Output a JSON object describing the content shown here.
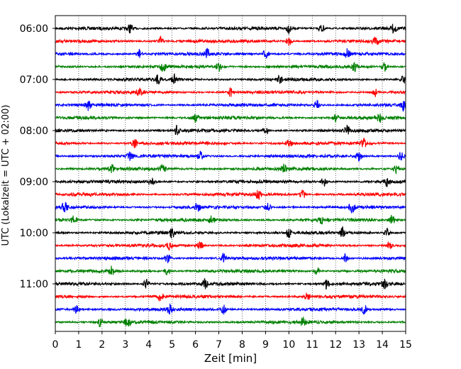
{
  "chart_data": {
    "type": "line",
    "title": "",
    "xlabel": "Zeit  [min]",
    "ylabel": "UTC (Lokalzeit = UTC + 02:00)",
    "xlim": [
      0,
      15
    ],
    "x_ticks": [
      0,
      1,
      2,
      3,
      4,
      5,
      6,
      7,
      8,
      9,
      10,
      11,
      12,
      13,
      14,
      15
    ],
    "x_grid": "vertical dotted",
    "y_ticks": [
      "06:00",
      "07:00",
      "08:00",
      "09:00",
      "10:00",
      "11:00"
    ],
    "trace_interval_min": 15,
    "series": [
      {
        "start": "06:00",
        "color": "#000000",
        "spikes": [
          3.2,
          10.0,
          11.4,
          14.5
        ]
      },
      {
        "start": "06:15",
        "color": "#ff0000",
        "spikes": [
          4.5,
          10.0,
          13.7
        ]
      },
      {
        "start": "06:30",
        "color": "#0000ff",
        "spikes": [
          3.6,
          6.5,
          9.0,
          12.5
        ]
      },
      {
        "start": "06:45",
        "color": "#008000",
        "spikes": [
          4.6,
          7.0,
          12.8,
          14.1
        ]
      },
      {
        "start": "07:00",
        "color": "#000000",
        "spikes": [
          4.4,
          5.1,
          9.6,
          14.9
        ]
      },
      {
        "start": "07:15",
        "color": "#ff0000",
        "spikes": [
          3.6,
          7.5,
          13.7
        ]
      },
      {
        "start": "07:30",
        "color": "#0000ff",
        "spikes": [
          1.4,
          11.2,
          14.9
        ]
      },
      {
        "start": "07:45",
        "color": "#008000",
        "spikes": [
          6.0,
          12.0,
          13.9
        ]
      },
      {
        "start": "08:00",
        "color": "#000000",
        "spikes": [
          5.2,
          9.0,
          12.5
        ]
      },
      {
        "start": "08:15",
        "color": "#ff0000",
        "spikes": [
          3.4,
          10.0,
          13.2
        ]
      },
      {
        "start": "08:30",
        "color": "#0000ff",
        "spikes": [
          3.2,
          6.2,
          13.0,
          14.8
        ]
      },
      {
        "start": "08:45",
        "color": "#008000",
        "spikes": [
          2.4,
          4.6,
          9.8,
          14.6
        ]
      },
      {
        "start": "09:00",
        "color": "#000000",
        "spikes": [
          4.1,
          11.5,
          14.2
        ]
      },
      {
        "start": "09:15",
        "color": "#ff0000",
        "spikes": [
          8.7,
          10.6
        ]
      },
      {
        "start": "09:30",
        "color": "#0000ff",
        "spikes": [
          0.4,
          6.1,
          9.1,
          12.7
        ]
      },
      {
        "start": "09:45",
        "color": "#008000",
        "spikes": [
          0.8,
          6.7,
          11.4,
          14.4
        ]
      },
      {
        "start": "10:00",
        "color": "#000000",
        "spikes": [
          5.0,
          10.0,
          12.3,
          14.2
        ]
      },
      {
        "start": "10:15",
        "color": "#ff0000",
        "spikes": [
          4.9,
          6.2,
          14.3
        ]
      },
      {
        "start": "10:30",
        "color": "#0000ff",
        "spikes": [
          4.8,
          7.2,
          12.4
        ]
      },
      {
        "start": "10:45",
        "color": "#008000",
        "spikes": [
          2.4,
          4.8,
          11.2
        ]
      },
      {
        "start": "11:00",
        "color": "#000000",
        "spikes": [
          3.9,
          6.4,
          11.6,
          14.1
        ]
      },
      {
        "start": "11:15",
        "color": "#ff0000",
        "spikes": [
          4.5,
          10.8
        ]
      },
      {
        "start": "11:30",
        "color": "#0000ff",
        "spikes": [
          0.9,
          4.9,
          7.2,
          13.2
        ]
      },
      {
        "start": "11:45",
        "color": "#008000",
        "spikes": [
          1.9,
          3.1,
          10.6
        ]
      }
    ]
  }
}
